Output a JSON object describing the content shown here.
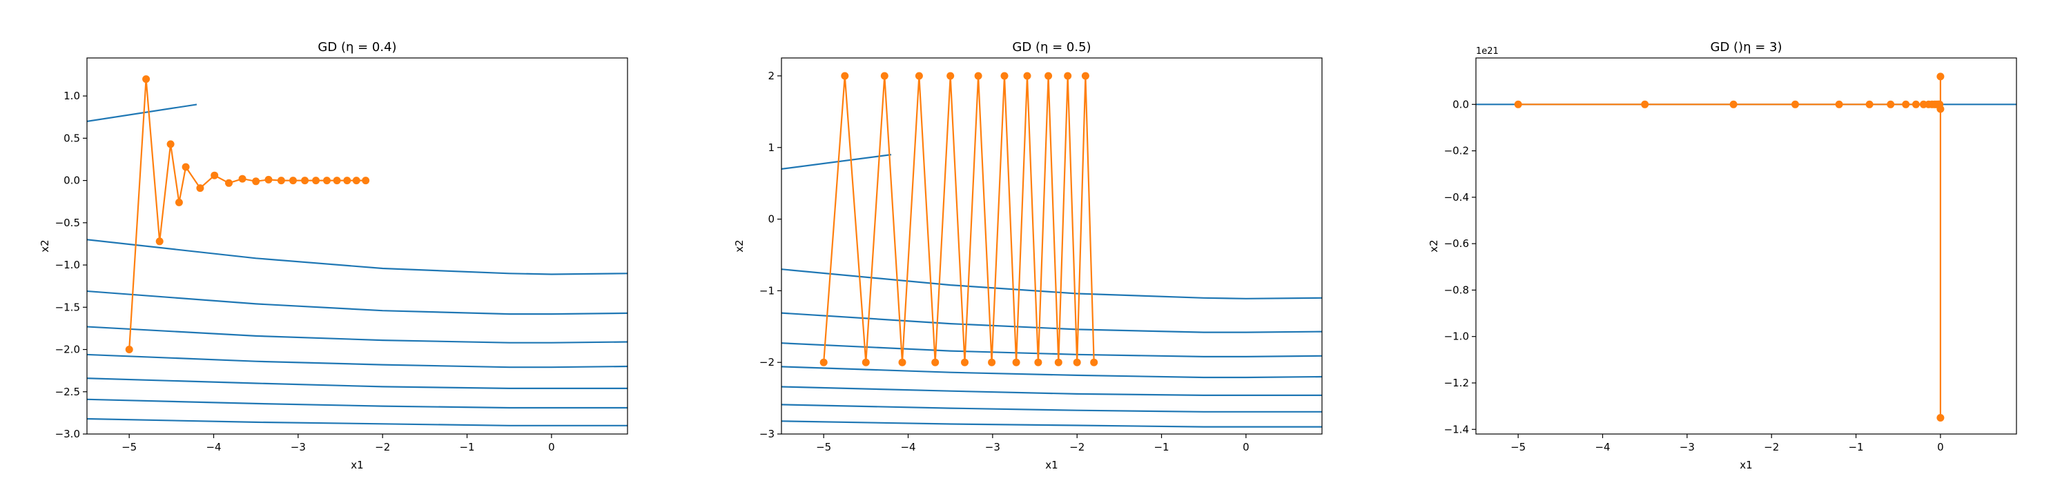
{
  "figure": {
    "colors": {
      "contour": "#1f77b4",
      "trajectory": "#ff7f0e",
      "axes": "#000000",
      "background": "#ffffff"
    }
  },
  "chart_data": [
    {
      "type": "line",
      "title": "GD (η = 0.4)",
      "xlabel": "x1",
      "ylabel": "x2",
      "xlim": [
        -5.5,
        0.9
      ],
      "ylim": [
        -3.0,
        1.45
      ],
      "grid": false,
      "x_ticks": [
        -5,
        -4,
        -3,
        -2,
        -1,
        0
      ],
      "x_tick_labels": [
        "−5",
        "−4",
        "−3",
        "−2",
        "−1",
        "0"
      ],
      "y_ticks": [
        1.0,
        0.5,
        0.0,
        -0.5,
        -1.0,
        -1.5,
        -2.0,
        -2.5,
        -3.0
      ],
      "y_tick_labels": [
        "1.0",
        "0.5",
        "0.0",
        "−0.5",
        "−1.0",
        "−1.5",
        "−2.0",
        "−2.5",
        "−3.0"
      ],
      "contours": [
        {
          "x": [
            -5.5,
            -4.2
          ],
          "y": [
            0.7,
            0.9
          ]
        },
        {
          "x": [
            -5.5,
            -3.5,
            -2.0,
            -0.5,
            0.0,
            0.9
          ],
          "y": [
            -0.7,
            -0.92,
            -1.04,
            -1.1,
            -1.11,
            -1.1
          ]
        },
        {
          "x": [
            -5.5,
            -3.5,
            -2.0,
            -0.5,
            0.0,
            0.9
          ],
          "y": [
            -1.31,
            -1.46,
            -1.54,
            -1.58,
            -1.58,
            -1.57
          ]
        },
        {
          "x": [
            -5.5,
            -3.5,
            -2.0,
            -0.5,
            0.0,
            0.9
          ],
          "y": [
            -1.73,
            -1.84,
            -1.89,
            -1.92,
            -1.92,
            -1.91
          ]
        },
        {
          "x": [
            -5.5,
            -3.5,
            -2.0,
            -0.5,
            0.0,
            0.9
          ],
          "y": [
            -2.06,
            -2.14,
            -2.18,
            -2.21,
            -2.21,
            -2.2
          ]
        },
        {
          "x": [
            -5.5,
            -3.5,
            -2.0,
            -0.5,
            0.0,
            0.9
          ],
          "y": [
            -2.34,
            -2.4,
            -2.44,
            -2.46,
            -2.46,
            -2.46
          ]
        },
        {
          "x": [
            -5.5,
            -3.5,
            -2.0,
            -0.5,
            0.0,
            0.9
          ],
          "y": [
            -2.59,
            -2.64,
            -2.67,
            -2.69,
            -2.69,
            -2.69
          ]
        },
        {
          "x": [
            -5.5,
            -3.5,
            -2.0,
            -0.5,
            0.0,
            0.9
          ],
          "y": [
            -2.82,
            -2.86,
            -2.88,
            -2.9,
            -2.9,
            -2.9
          ]
        }
      ],
      "trajectory": {
        "x": [
          -5.0,
          -4.8,
          -4.64,
          -4.51,
          -4.41,
          -4.33,
          -4.16,
          -3.99,
          -3.82,
          -3.66,
          -3.5,
          -3.35,
          -3.2,
          -3.06,
          -2.92,
          -2.79,
          -2.66,
          -2.54,
          -2.42,
          -2.31,
          -2.2
        ],
        "y": [
          -2.0,
          1.2,
          -0.72,
          0.43,
          -0.26,
          0.16,
          -0.09,
          0.06,
          -0.03,
          0.02,
          -0.01,
          0.01,
          0.0,
          0.0,
          0.0,
          0.0,
          0.0,
          0.0,
          0.0,
          0.0,
          0.0
        ]
      }
    },
    {
      "type": "line",
      "title": "GD (η = 0.5)",
      "xlabel": "x1",
      "ylabel": "x2",
      "xlim": [
        -5.5,
        0.9
      ],
      "ylim": [
        -3.0,
        2.25
      ],
      "grid": false,
      "x_ticks": [
        -5,
        -4,
        -3,
        -2,
        -1,
        0
      ],
      "x_tick_labels": [
        "−5",
        "−4",
        "−3",
        "−2",
        "−1",
        "0"
      ],
      "y_ticks": [
        2,
        1,
        0,
        -1,
        -2,
        -3
      ],
      "y_tick_labels": [
        "2",
        "1",
        "0",
        "−1",
        "−2",
        "−3"
      ],
      "contours": [
        {
          "x": [
            -5.5,
            -4.2
          ],
          "y": [
            0.7,
            0.9
          ]
        },
        {
          "x": [
            -5.5,
            -3.5,
            -2.0,
            -0.5,
            0.0,
            0.9
          ],
          "y": [
            -0.7,
            -0.92,
            -1.04,
            -1.1,
            -1.11,
            -1.1
          ]
        },
        {
          "x": [
            -5.5,
            -3.5,
            -2.0,
            -0.5,
            0.0,
            0.9
          ],
          "y": [
            -1.31,
            -1.46,
            -1.54,
            -1.58,
            -1.58,
            -1.57
          ]
        },
        {
          "x": [
            -5.5,
            -3.5,
            -2.0,
            -0.5,
            0.0,
            0.9
          ],
          "y": [
            -1.73,
            -1.84,
            -1.89,
            -1.92,
            -1.92,
            -1.91
          ]
        },
        {
          "x": [
            -5.5,
            -3.5,
            -2.0,
            -0.5,
            0.0,
            0.9
          ],
          "y": [
            -2.06,
            -2.14,
            -2.18,
            -2.21,
            -2.21,
            -2.2
          ]
        },
        {
          "x": [
            -5.5,
            -3.5,
            -2.0,
            -0.5,
            0.0,
            0.9
          ],
          "y": [
            -2.34,
            -2.4,
            -2.44,
            -2.46,
            -2.46,
            -2.46
          ]
        },
        {
          "x": [
            -5.5,
            -3.5,
            -2.0,
            -0.5,
            0.0,
            0.9
          ],
          "y": [
            -2.59,
            -2.64,
            -2.67,
            -2.69,
            -2.69,
            -2.69
          ]
        },
        {
          "x": [
            -5.5,
            -3.5,
            -2.0,
            -0.5,
            0.0,
            0.9
          ],
          "y": [
            -2.82,
            -2.86,
            -2.88,
            -2.9,
            -2.9,
            -2.9
          ]
        }
      ],
      "trajectory": {
        "x": [
          -5.0,
          -4.75,
          -4.5,
          -4.28,
          -4.07,
          -3.87,
          -3.68,
          -3.5,
          -3.33,
          -3.17,
          -3.01,
          -2.86,
          -2.72,
          -2.59,
          -2.46,
          -2.34,
          -2.22,
          -2.11,
          -2.0,
          -1.9,
          -1.8
        ],
        "y": [
          -2,
          2,
          -2,
          2,
          -2,
          2,
          -2,
          2,
          -2,
          2,
          -2,
          2,
          -2,
          2,
          -2,
          2,
          -2,
          2,
          -2,
          2,
          -2
        ]
      }
    },
    {
      "type": "line",
      "title": "GD ()η = 3)",
      "xlabel": "x1",
      "ylabel": "x2",
      "xlim": [
        -5.5,
        0.9
      ],
      "ylim": [
        -1.42e+21,
        2e+20
      ],
      "grid": false,
      "offset_text": "1e21",
      "x_ticks": [
        -5,
        -4,
        -3,
        -2,
        -1,
        0
      ],
      "x_tick_labels": [
        "−5",
        "−4",
        "−3",
        "−2",
        "−1",
        "0"
      ],
      "y_ticks": [
        0.0,
        -2e+20,
        -4e+20,
        -6e+20,
        -8e+20,
        -1e+21,
        -1.2e+21,
        -1.4e+21
      ],
      "y_tick_labels": [
        "0.0",
        "−0.2",
        "−0.4",
        "−0.6",
        "−0.8",
        "−1.0",
        "−1.2",
        "−1.4"
      ],
      "contours": [
        {
          "x": [
            -5.5,
            0.9
          ],
          "y": [
            0,
            0
          ]
        }
      ],
      "trajectory": {
        "x": [
          -5.0,
          -3.5,
          -2.45,
          -1.72,
          -1.2,
          -0.84,
          -0.59,
          -0.41,
          -0.29,
          -0.2,
          -0.14,
          -0.1,
          -0.07,
          -0.05,
          -0.03,
          -0.02,
          -0.01,
          0.0,
          0.0,
          0.0
        ],
        "y": [
          0,
          0,
          0,
          0,
          0,
          0,
          0,
          0,
          0,
          0,
          0,
          0,
          0,
          0,
          0,
          0,
          0,
          -2e+19,
          1.2e+20,
          -1.35e+21
        ]
      }
    }
  ]
}
